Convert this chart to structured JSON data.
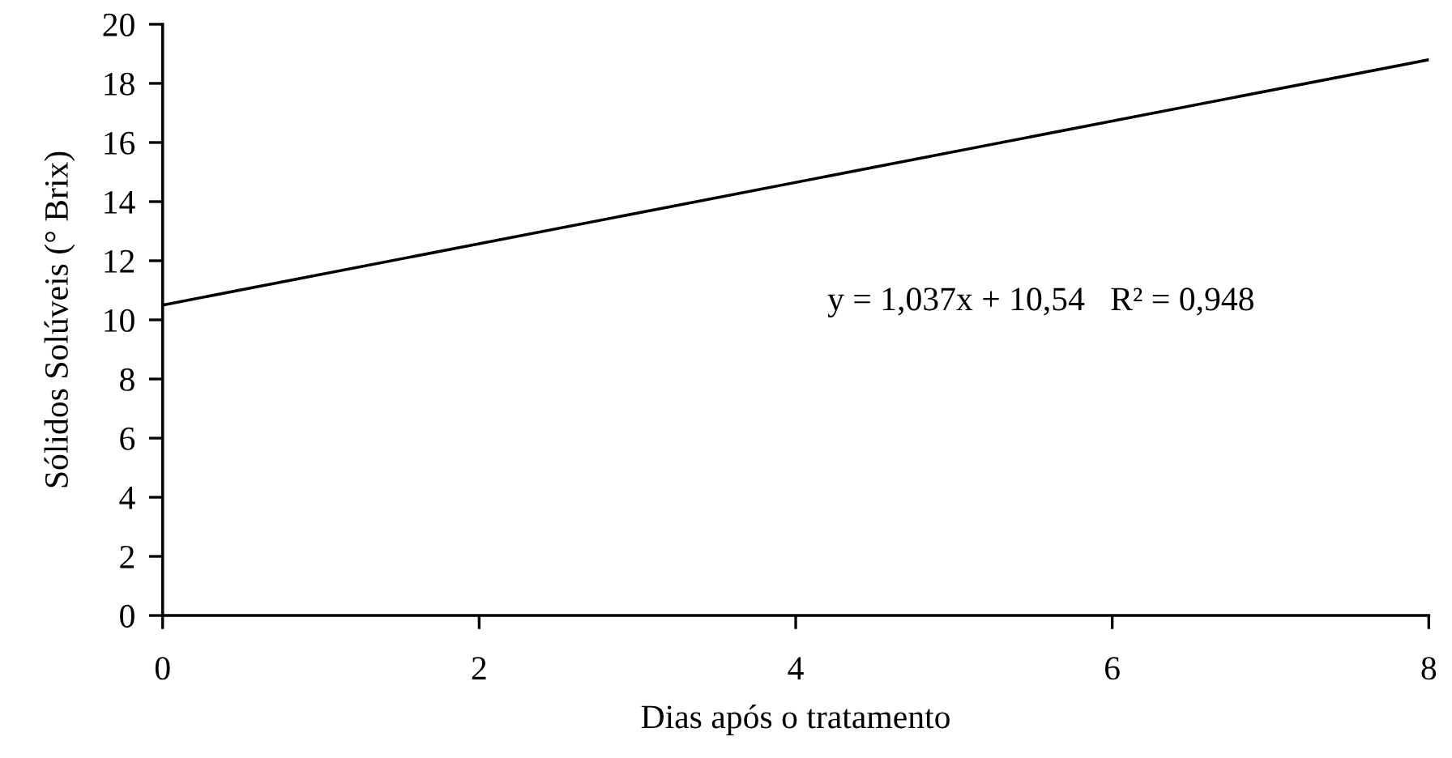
{
  "chart_data": {
    "type": "line",
    "xlabel": "Dias após o tratamento",
    "ylabel": "Sólidos Solúveis (° Brix)",
    "x": [
      0,
      8
    ],
    "series": [
      {
        "color": "#000000",
        "values": [
          10.5,
          18.8
        ]
      }
    ],
    "xlim": [
      0,
      8
    ],
    "xticks": [
      0,
      2,
      4,
      6,
      8
    ],
    "ylim": [
      0,
      20
    ],
    "yticks": [
      0,
      2,
      4,
      6,
      8,
      10,
      12,
      14,
      16,
      18,
      20
    ],
    "annotations": [
      "y = 1,037x + 10,54   R² = 0,948"
    ],
    "grid": false,
    "marker": "none",
    "line_style": "solid"
  }
}
